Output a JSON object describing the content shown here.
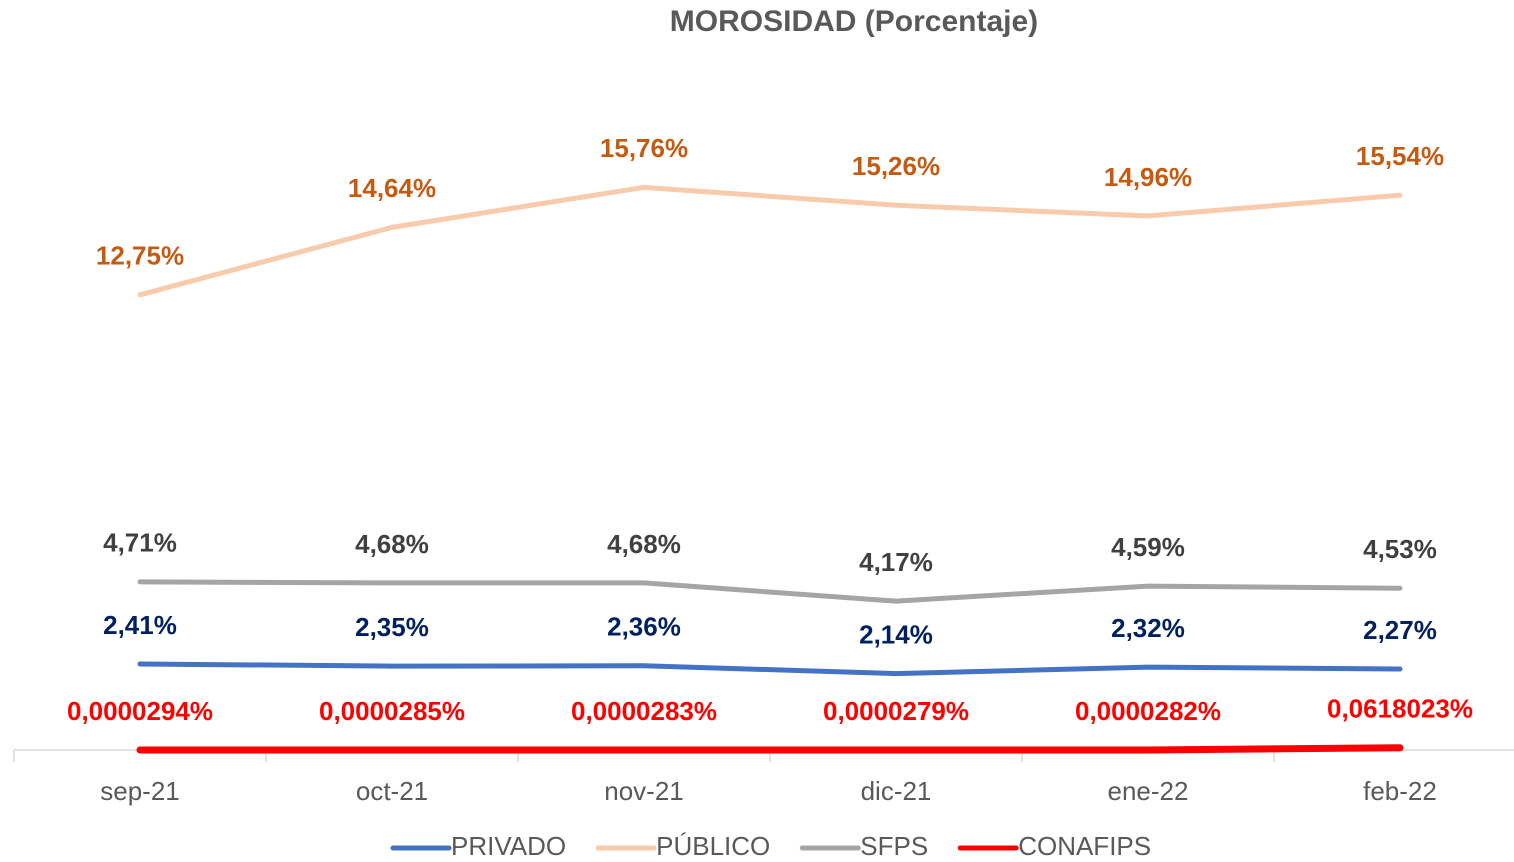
{
  "chart_data": {
    "type": "line",
    "title": "MOROSIDAD (Porcentaje)",
    "categories": [
      "sep-21",
      "oct-21",
      "nov-21",
      "dic-21",
      "ene-22",
      "feb-22"
    ],
    "legend": "bottom",
    "series": [
      {
        "name": "PRIVADO",
        "color": "#4472c4",
        "label_color": "#002060",
        "values": [
          2.41,
          2.35,
          2.36,
          2.14,
          2.32,
          2.27
        ],
        "value_labels": [
          "2,41%",
          "2,35%",
          "2,36%",
          "2,14%",
          "2,32%",
          "2,27%"
        ]
      },
      {
        "name": "PÚBLICO",
        "color": "#f8cbad",
        "label_color": "#c55a11",
        "values": [
          12.75,
          14.64,
          15.76,
          15.26,
          14.96,
          15.54
        ],
        "value_labels": [
          "12,75%",
          "14,64%",
          "15,76%",
          "15,26%",
          "14,96%",
          "15,54%"
        ]
      },
      {
        "name": "SFPS",
        "color": "#a5a5a5",
        "label_color": "#404040",
        "values": [
          4.71,
          4.68,
          4.68,
          4.17,
          4.59,
          4.53
        ],
        "value_labels": [
          "4,71%",
          "4,68%",
          "4,68%",
          "4,17%",
          "4,59%",
          "4,53%"
        ]
      },
      {
        "name": "CONAFIPS",
        "color": "#ff0000",
        "label_color": "#ff0000",
        "values": [
          2.94e-05,
          2.85e-05,
          2.83e-05,
          2.79e-05,
          2.82e-05,
          0.0618023
        ],
        "value_labels": [
          "0,0000294%",
          "0,0000285%",
          "0,0000283%",
          "0,0000279%",
          "0,0000282%",
          "0,0618023%"
        ]
      }
    ]
  }
}
